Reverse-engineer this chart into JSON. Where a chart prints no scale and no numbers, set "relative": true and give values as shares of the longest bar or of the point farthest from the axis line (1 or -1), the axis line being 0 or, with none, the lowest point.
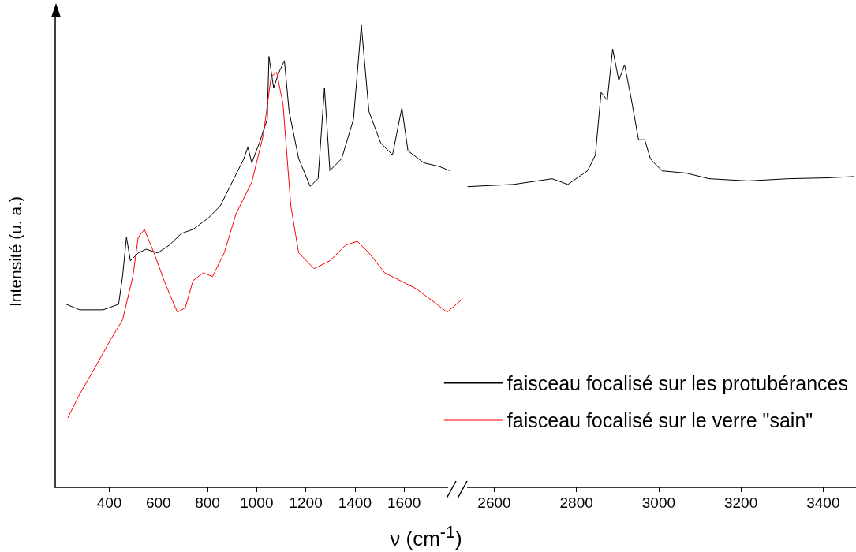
{
  "chart_data": [
    {
      "type": "line",
      "relative": true,
      "xlabel": "ν (cm$^{-1}$)",
      "ylabel": "Intensité (u. a.)",
      "xlim": [
        180,
        1850
      ],
      "xticks": [
        400,
        600,
        800,
        1000,
        1200,
        1400,
        1600
      ],
      "grid": false,
      "legend": "bottom right",
      "line_style": "solid",
      "series": [
        {
          "name": "faisceau focalisé sur les protubérances",
          "color": "#000000",
          "x": [
            225,
            279,
            375,
            438,
            454,
            470,
            486,
            518,
            550,
            597,
            645,
            693,
            741,
            804,
            852,
            884,
            916,
            948,
            964,
            980,
            1011,
            1043,
            1050,
            1069,
            1091,
            1113,
            1132,
            1171,
            1218,
            1250,
            1276,
            1298,
            1346,
            1394,
            1426,
            1457,
            1505,
            1553,
            1591,
            1616,
            1680,
            1744,
            1785
          ],
          "values": [
            0.396,
            0.384,
            0.384,
            0.396,
            0.456,
            0.541,
            0.49,
            0.507,
            0.515,
            0.507,
            0.524,
            0.549,
            0.558,
            0.583,
            0.609,
            0.643,
            0.677,
            0.711,
            0.736,
            0.702,
            0.745,
            0.796,
            0.932,
            0.864,
            0.898,
            0.923,
            0.813,
            0.711,
            0.651,
            0.668,
            0.864,
            0.685,
            0.711,
            0.796,
            1,
            0.813,
            0.745,
            0.719,
            0.821,
            0.728,
            0.702,
            0.694,
            0.685
          ]
        },
        {
          "name": "faisceau focalisé sur le verre \"sain\"",
          "color": "#ff0000",
          "x": [
            231,
            279,
            343,
            406,
            454,
            496,
            518,
            543,
            582,
            629,
            677,
            709,
            741,
            782,
            820,
            868,
            916,
            980,
            1027,
            1059,
            1081,
            1107,
            1139,
            1171,
            1234,
            1298,
            1362,
            1410,
            1457,
            1521,
            1585,
            1648,
            1712,
            1775,
            1839
          ],
          "values": [
            0.15,
            0.201,
            0.26,
            0.32,
            0.362,
            0.456,
            0.541,
            0.558,
            0.507,
            0.439,
            0.379,
            0.388,
            0.447,
            0.464,
            0.456,
            0.507,
            0.592,
            0.66,
            0.762,
            0.889,
            0.898,
            0.83,
            0.609,
            0.507,
            0.473,
            0.49,
            0.524,
            0.532,
            0.507,
            0.464,
            0.447,
            0.43,
            0.405,
            0.379,
            0.408
          ]
        }
      ]
    },
    {
      "type": "line",
      "relative": true,
      "xlim": [
        2530,
        3480
      ],
      "xticks": [
        2600,
        2800,
        3000,
        3200,
        3400
      ],
      "tick_labels": "x",
      "grid": false,
      "line_style": "solid",
      "series": [
        {
          "color": "#000000",
          "x": [
            2535,
            2646,
            2741,
            2779,
            2827,
            2846,
            2860,
            2875,
            2888,
            2903,
            2917,
            2932,
            2951,
            2966,
            2980,
            3008,
            3066,
            3123,
            3218,
            3314,
            3409,
            3476
          ],
          "values": [
            0.686,
            0.691,
            0.704,
            0.691,
            0.722,
            0.758,
            0.901,
            0.883,
            1,
            0.928,
            0.964,
            0.893,
            0.793,
            0.793,
            0.749,
            0.722,
            0.717,
            0.704,
            0.699,
            0.704,
            0.706,
            0.709
          ]
        }
      ]
    }
  ]
}
